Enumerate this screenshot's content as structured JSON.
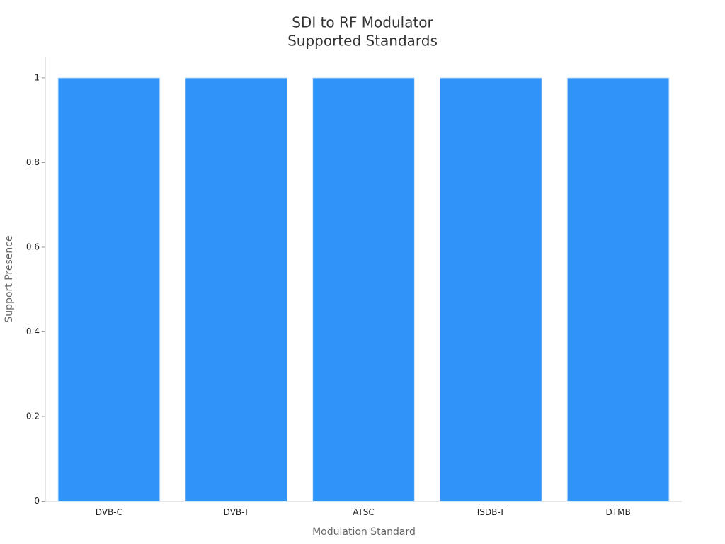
{
  "chart_data": {
    "type": "bar",
    "title": [
      "SDI to RF Modulator",
      "Supported Standards"
    ],
    "x_label": "Modulation Standard",
    "y_label": "Support Presence",
    "categories": [
      "DVB-C",
      "DVB-T",
      "ATSC",
      "ISDB-T",
      "DTMB"
    ],
    "values": [
      1,
      1,
      1,
      1,
      1
    ],
    "color": "#3093f8",
    "ylim": [
      0,
      1.05
    ],
    "yticks": [
      0,
      0.2,
      0.4,
      0.6,
      0.8,
      1
    ],
    "grid": false
  }
}
